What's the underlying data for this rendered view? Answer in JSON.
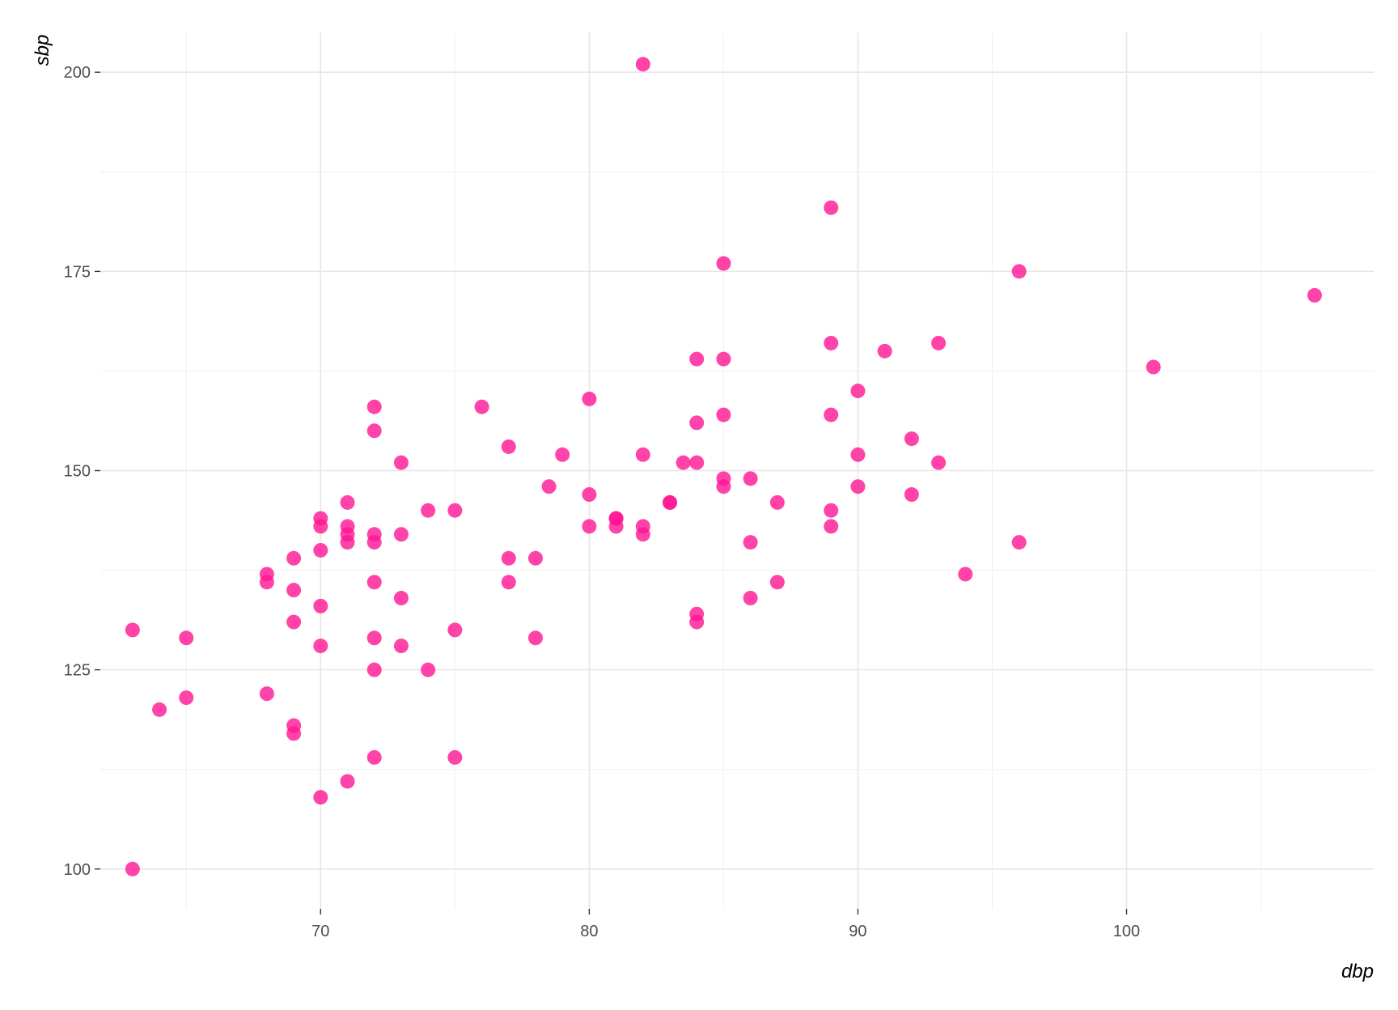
{
  "chart_data": {
    "type": "scatter",
    "xlabel": "dbp",
    "ylabel": "sbp",
    "xlim": [
      61.8,
      109.2
    ],
    "ylim": [
      95,
      205
    ],
    "x_major_ticks": [
      70,
      80,
      90,
      100
    ],
    "x_minor_ticks": [
      65,
      75,
      85,
      95,
      105
    ],
    "y_major_ticks": [
      100,
      125,
      150,
      175,
      200
    ],
    "y_minor_ticks": [
      112.5,
      137.5,
      162.5,
      187.5
    ],
    "x_tick_labels": [
      "70",
      "80",
      "90",
      "100"
    ],
    "y_tick_labels": [
      "100",
      "125",
      "150",
      "175",
      "200"
    ],
    "grid": true,
    "point_color": "#ff1493",
    "point_opacity": 0.8,
    "points": [
      {
        "x": 63,
        "y": 100
      },
      {
        "x": 63,
        "y": 130
      },
      {
        "x": 64,
        "y": 120
      },
      {
        "x": 65,
        "y": 121.5
      },
      {
        "x": 65,
        "y": 129
      },
      {
        "x": 68,
        "y": 122
      },
      {
        "x": 68,
        "y": 136
      },
      {
        "x": 68,
        "y": 137
      },
      {
        "x": 69,
        "y": 117
      },
      {
        "x": 69,
        "y": 118
      },
      {
        "x": 69,
        "y": 131
      },
      {
        "x": 69,
        "y": 135
      },
      {
        "x": 69,
        "y": 139
      },
      {
        "x": 70,
        "y": 109
      },
      {
        "x": 70,
        "y": 128
      },
      {
        "x": 70,
        "y": 133
      },
      {
        "x": 70,
        "y": 140
      },
      {
        "x": 70,
        "y": 143
      },
      {
        "x": 70,
        "y": 144
      },
      {
        "x": 71,
        "y": 111
      },
      {
        "x": 71,
        "y": 141
      },
      {
        "x": 71,
        "y": 142
      },
      {
        "x": 71,
        "y": 143
      },
      {
        "x": 71,
        "y": 146
      },
      {
        "x": 72,
        "y": 114
      },
      {
        "x": 72,
        "y": 125
      },
      {
        "x": 72,
        "y": 129
      },
      {
        "x": 72,
        "y": 136
      },
      {
        "x": 72,
        "y": 141
      },
      {
        "x": 72,
        "y": 142
      },
      {
        "x": 72,
        "y": 155
      },
      {
        "x": 72,
        "y": 158
      },
      {
        "x": 73,
        "y": 128
      },
      {
        "x": 73,
        "y": 134
      },
      {
        "x": 73,
        "y": 142
      },
      {
        "x": 73,
        "y": 151
      },
      {
        "x": 74,
        "y": 125
      },
      {
        "x": 74,
        "y": 145
      },
      {
        "x": 75,
        "y": 114
      },
      {
        "x": 75,
        "y": 130
      },
      {
        "x": 75,
        "y": 145
      },
      {
        "x": 76,
        "y": 158
      },
      {
        "x": 77,
        "y": 136
      },
      {
        "x": 77,
        "y": 139
      },
      {
        "x": 77,
        "y": 153
      },
      {
        "x": 78,
        "y": 129
      },
      {
        "x": 78,
        "y": 139
      },
      {
        "x": 78.5,
        "y": 148
      },
      {
        "x": 79,
        "y": 152
      },
      {
        "x": 80,
        "y": 143
      },
      {
        "x": 80,
        "y": 147
      },
      {
        "x": 80,
        "y": 159
      },
      {
        "x": 81,
        "y": 143
      },
      {
        "x": 81,
        "y": 144
      },
      {
        "x": 81,
        "y": 144
      },
      {
        "x": 82,
        "y": 142
      },
      {
        "x": 82,
        "y": 143
      },
      {
        "x": 82,
        "y": 152
      },
      {
        "x": 82,
        "y": 201
      },
      {
        "x": 83,
        "y": 146
      },
      {
        "x": 83,
        "y": 146
      },
      {
        "x": 83.5,
        "y": 151
      },
      {
        "x": 84,
        "y": 131
      },
      {
        "x": 84,
        "y": 132
      },
      {
        "x": 84,
        "y": 151
      },
      {
        "x": 84,
        "y": 156
      },
      {
        "x": 84,
        "y": 164
      },
      {
        "x": 85,
        "y": 148
      },
      {
        "x": 85,
        "y": 149
      },
      {
        "x": 85,
        "y": 157
      },
      {
        "x": 85,
        "y": 164
      },
      {
        "x": 85,
        "y": 176
      },
      {
        "x": 86,
        "y": 134
      },
      {
        "x": 86,
        "y": 141
      },
      {
        "x": 86,
        "y": 149
      },
      {
        "x": 87,
        "y": 136
      },
      {
        "x": 87,
        "y": 146
      },
      {
        "x": 89,
        "y": 143
      },
      {
        "x": 89,
        "y": 145
      },
      {
        "x": 89,
        "y": 157
      },
      {
        "x": 89,
        "y": 166
      },
      {
        "x": 89,
        "y": 183
      },
      {
        "x": 90,
        "y": 148
      },
      {
        "x": 90,
        "y": 152
      },
      {
        "x": 90,
        "y": 160
      },
      {
        "x": 91,
        "y": 165
      },
      {
        "x": 92,
        "y": 147
      },
      {
        "x": 92,
        "y": 154
      },
      {
        "x": 93,
        "y": 151
      },
      {
        "x": 93,
        "y": 166
      },
      {
        "x": 94,
        "y": 137
      },
      {
        "x": 96,
        "y": 141
      },
      {
        "x": 96,
        "y": 175
      },
      {
        "x": 101,
        "y": 163
      },
      {
        "x": 107,
        "y": 172
      }
    ]
  }
}
